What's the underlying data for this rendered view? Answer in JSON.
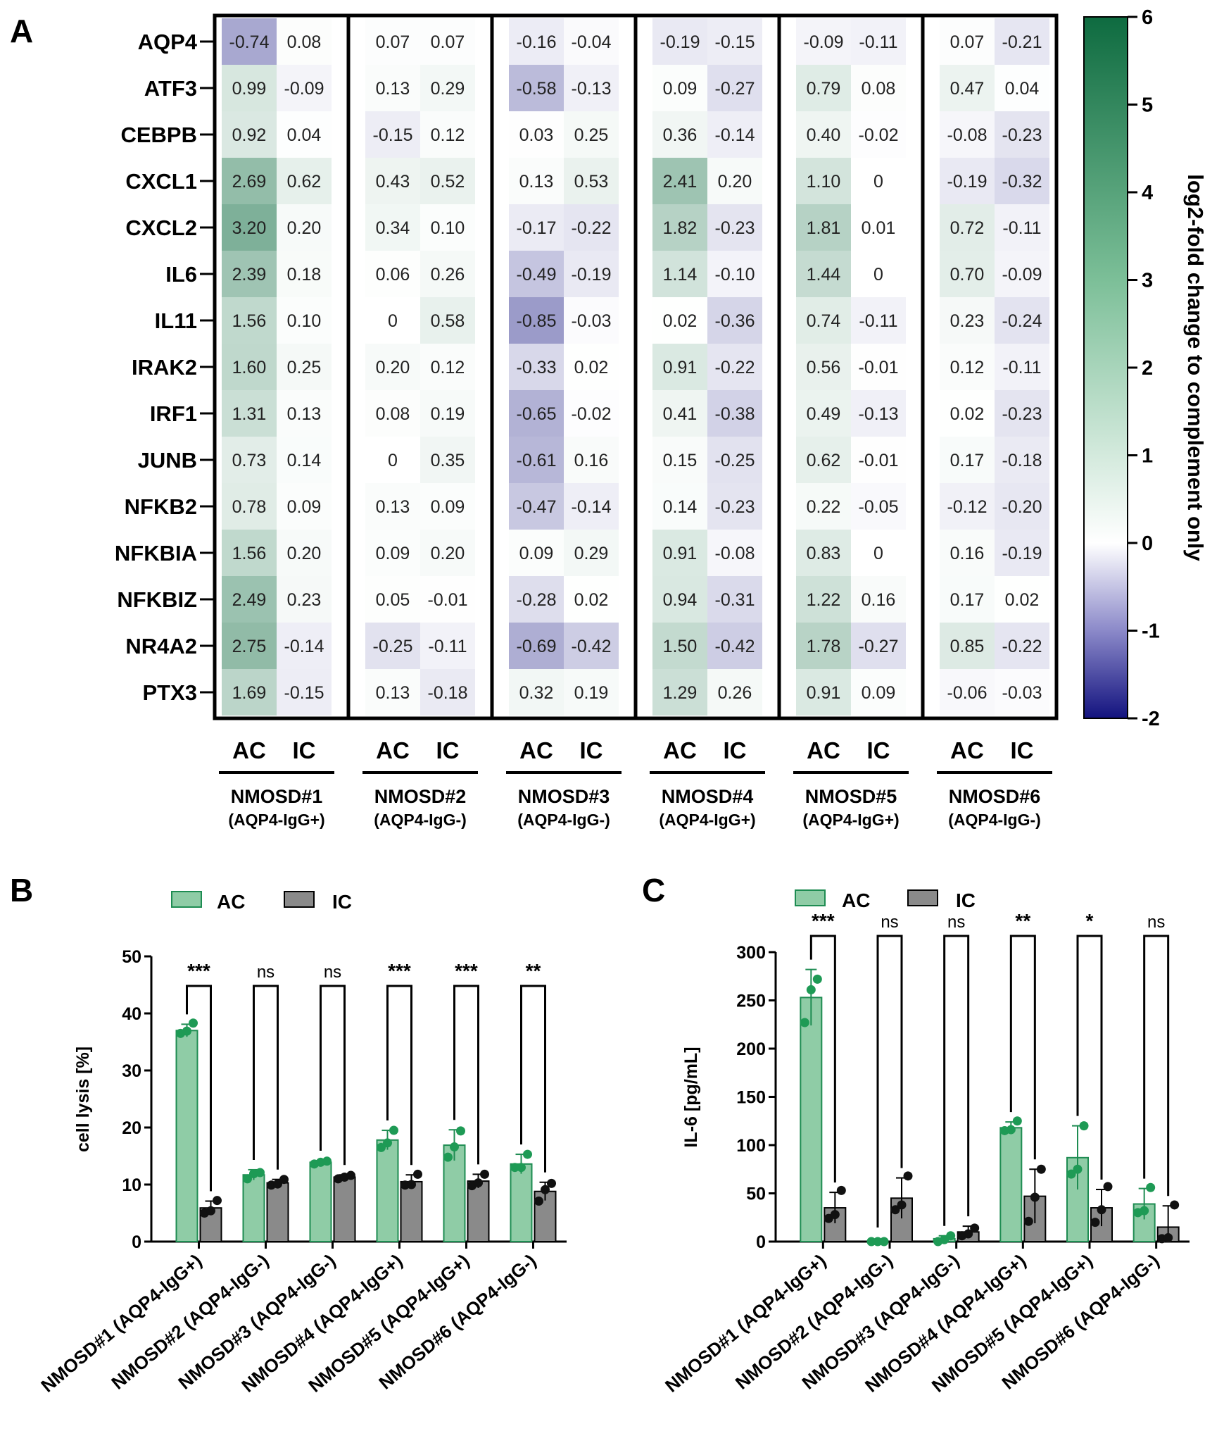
{
  "colors": {
    "ac_fill": "#8fcca6",
    "ac_stroke": "#1e8c52",
    "ac_point": "#1e9a55",
    "ic_fill": "#8a8a8a",
    "ic_point": "#111111",
    "heat_high": "#0e6b40",
    "heat_mid": "#ffffff",
    "heat_low": "#13137f"
  },
  "chart_data": [
    {
      "panel_label": "A",
      "type": "heatmap",
      "rows": [
        "AQP4",
        "ATF3",
        "CEBPB",
        "CXCL1",
        "CXCL2",
        "IL6",
        "IL11",
        "IRAK2",
        "IRF1",
        "JUNB",
        "NFKB2",
        "NFKBIA",
        "NFKBIZ",
        "NR4A2",
        "PTX3"
      ],
      "groups": [
        {
          "name": "NMOSD#1",
          "sub": "(AQP4-IgG+)"
        },
        {
          "name": "NMOSD#2",
          "sub": "(AQP4-IgG-)"
        },
        {
          "name": "NMOSD#3",
          "sub": "(AQP4-IgG-)"
        },
        {
          "name": "NMOSD#4",
          "sub": "(AQP4-IgG+)"
        },
        {
          "name": "NMOSD#5",
          "sub": "(AQP4-IgG+)"
        },
        {
          "name": "NMOSD#6",
          "sub": "(AQP4-IgG-)"
        }
      ],
      "subcolumns": [
        "AC",
        "IC"
      ],
      "values": [
        [
          "-0.74",
          "0.08",
          "0.07",
          "0.07",
          "-0.16",
          "-0.04",
          "-0.19",
          "-0.15",
          "-0.09",
          "-0.11",
          "0.07",
          "-0.21"
        ],
        [
          "0.99",
          "-0.09",
          "0.13",
          "0.29",
          "-0.58",
          "-0.13",
          "0.09",
          "-0.27",
          "0.79",
          "0.08",
          "0.47",
          "0.04"
        ],
        [
          "0.92",
          "0.04",
          "-0.15",
          "0.12",
          "0.03",
          "0.25",
          "0.36",
          "-0.14",
          "0.40",
          "-0.02",
          "-0.08",
          "-0.23"
        ],
        [
          "2.69",
          "0.62",
          "0.43",
          "0.52",
          "0.13",
          "0.53",
          "2.41",
          "0.20",
          "1.10",
          "0",
          "-0.19",
          "-0.32"
        ],
        [
          "3.20",
          "0.20",
          "0.34",
          "0.10",
          "-0.17",
          "-0.22",
          "1.82",
          "-0.23",
          "1.81",
          "0.01",
          "0.72",
          "-0.11"
        ],
        [
          "2.39",
          "0.18",
          "0.06",
          "0.26",
          "-0.49",
          "-0.19",
          "1.14",
          "-0.10",
          "1.44",
          "0",
          "0.70",
          "-0.09"
        ],
        [
          "1.56",
          "0.10",
          "0",
          "0.58",
          "-0.85",
          "-0.03",
          "0.02",
          "-0.36",
          "0.74",
          "-0.11",
          "0.23",
          "-0.24"
        ],
        [
          "1.60",
          "0.25",
          "0.20",
          "0.12",
          "-0.33",
          "0.02",
          "0.91",
          "-0.22",
          "0.56",
          "-0.01",
          "0.12",
          "-0.11"
        ],
        [
          "1.31",
          "0.13",
          "0.08",
          "0.19",
          "-0.65",
          "-0.02",
          "0.41",
          "-0.38",
          "0.49",
          "-0.13",
          "0.02",
          "-0.23"
        ],
        [
          "0.73",
          "0.14",
          "0",
          "0.35",
          "-0.61",
          "0.16",
          "0.15",
          "-0.25",
          "0.62",
          "-0.01",
          "0.17",
          "-0.18"
        ],
        [
          "0.78",
          "0.09",
          "0.13",
          "0.09",
          "-0.47",
          "-0.14",
          "0.14",
          "-0.23",
          "0.22",
          "-0.05",
          "-0.12",
          "-0.20"
        ],
        [
          "1.56",
          "0.20",
          "0.09",
          "0.20",
          "0.09",
          "0.29",
          "0.91",
          "-0.08",
          "0.83",
          "0",
          "0.16",
          "-0.19"
        ],
        [
          "2.49",
          "0.23",
          "0.05",
          "-0.01",
          "-0.28",
          "0.02",
          "0.94",
          "-0.31",
          "1.22",
          "0.16",
          "0.17",
          "0.02"
        ],
        [
          "2.75",
          "-0.14",
          "-0.25",
          "-0.11",
          "-0.69",
          "-0.42",
          "1.50",
          "-0.42",
          "1.78",
          "-0.27",
          "0.85",
          "-0.22"
        ],
        [
          "1.69",
          "-0.15",
          "0.13",
          "-0.18",
          "0.32",
          "0.19",
          "1.29",
          "0.26",
          "0.91",
          "0.09",
          "-0.06",
          "-0.03"
        ]
      ],
      "colorbar": {
        "label": "log2-fold change to complement only",
        "min": -2,
        "max": 6,
        "ticks": [
          "6",
          "5",
          "4",
          "3",
          "2",
          "1",
          "0",
          "-1",
          "-2"
        ]
      }
    },
    {
      "panel_label": "B",
      "type": "bar",
      "ylabel": "cell lysis [%]",
      "ylim": [
        0,
        50
      ],
      "yticks": [
        "0",
        "10",
        "20",
        "30",
        "40",
        "50"
      ],
      "legend": [
        "AC",
        "IC"
      ],
      "categories": [
        "NMOSD#1 (AQP4-IgG+)",
        "NMOSD#2 (AQP4-IgG-)",
        "NMOSD#3 (AQP4-IgG-)",
        "NMOSD#4 (AQP4-IgG+)",
        "NMOSD#5 (AQP4-IgG+)",
        "NMOSD#6 (AQP4-IgG-)"
      ],
      "series": [
        {
          "name": "AC",
          "values": [
            37.0,
            11.7,
            13.9,
            17.8,
            16.9,
            13.6
          ],
          "err": [
            1.1,
            0.9,
            0.3,
            1.7,
            2.7,
            1.7
          ],
          "points": [
            [
              36.5,
              36.9,
              38.3
            ],
            [
              11.0,
              11.9,
              12.1
            ],
            [
              13.6,
              13.9,
              14.1
            ],
            [
              16.5,
              17.3,
              19.5
            ],
            [
              14.8,
              16.6,
              19.4
            ],
            [
              13.0,
              13.0,
              15.3
            ]
          ]
        },
        {
          "name": "IC",
          "values": [
            5.9,
            10.3,
            11.3,
            10.5,
            10.6,
            8.8
          ],
          "err": [
            1.2,
            0.6,
            0.4,
            1.2,
            1.2,
            1.6
          ],
          "points": [
            [
              5.0,
              5.4,
              7.2
            ],
            [
              9.9,
              10.1,
              10.9
            ],
            [
              11.0,
              11.3,
              11.6
            ],
            [
              9.9,
              10.0,
              11.8
            ],
            [
              9.8,
              10.3,
              11.8
            ],
            [
              7.1,
              9.1,
              10.2
            ]
          ]
        }
      ],
      "significance": [
        "***",
        "ns",
        "ns",
        "***",
        "***",
        "**"
      ]
    },
    {
      "panel_label": "C",
      "type": "bar",
      "ylabel": "IL-6 [pg/mL]",
      "ylim": [
        0,
        300
      ],
      "yticks": [
        "0",
        "50",
        "100",
        "150",
        "200",
        "250",
        "300"
      ],
      "legend": [
        "AC",
        "IC"
      ],
      "categories": [
        "NMOSD#1 (AQP4-IgG+)",
        "NMOSD#2 (AQP4-IgG-)",
        "NMOSD#3 (AQP4-IgG-)",
        "NMOSD#4 (AQP4-IgG+)",
        "NMOSD#5 (AQP4-IgG+)",
        "NMOSD#6 (AQP4-IgG-)"
      ],
      "series": [
        {
          "name": "AC",
          "values": [
            253,
            0,
            3,
            118,
            87,
            39
          ],
          "err": [
            29,
            0,
            3,
            6,
            33,
            16
          ],
          "points": [
            [
              227,
              261,
              272
            ],
            [
              0,
              0,
              0
            ],
            [
              0,
              2,
              6
            ],
            [
              115,
              116,
              125
            ],
            [
              70,
              75,
              120
            ],
            [
              30,
              32,
              56
            ]
          ]
        },
        {
          "name": "IC",
          "values": [
            35,
            45,
            10,
            47,
            35,
            15
          ],
          "err": [
            16,
            21,
            6,
            28,
            19,
            22
          ],
          "points": [
            [
              24,
              28,
              53
            ],
            [
              33,
              38,
              68
            ],
            [
              6,
              8,
              14
            ],
            [
              21,
              46,
              75
            ],
            [
              20,
              33,
              57
            ],
            [
              3,
              4,
              38
            ]
          ]
        }
      ],
      "significance": [
        "***",
        "ns",
        "ns",
        "**",
        "*",
        "ns"
      ]
    }
  ]
}
